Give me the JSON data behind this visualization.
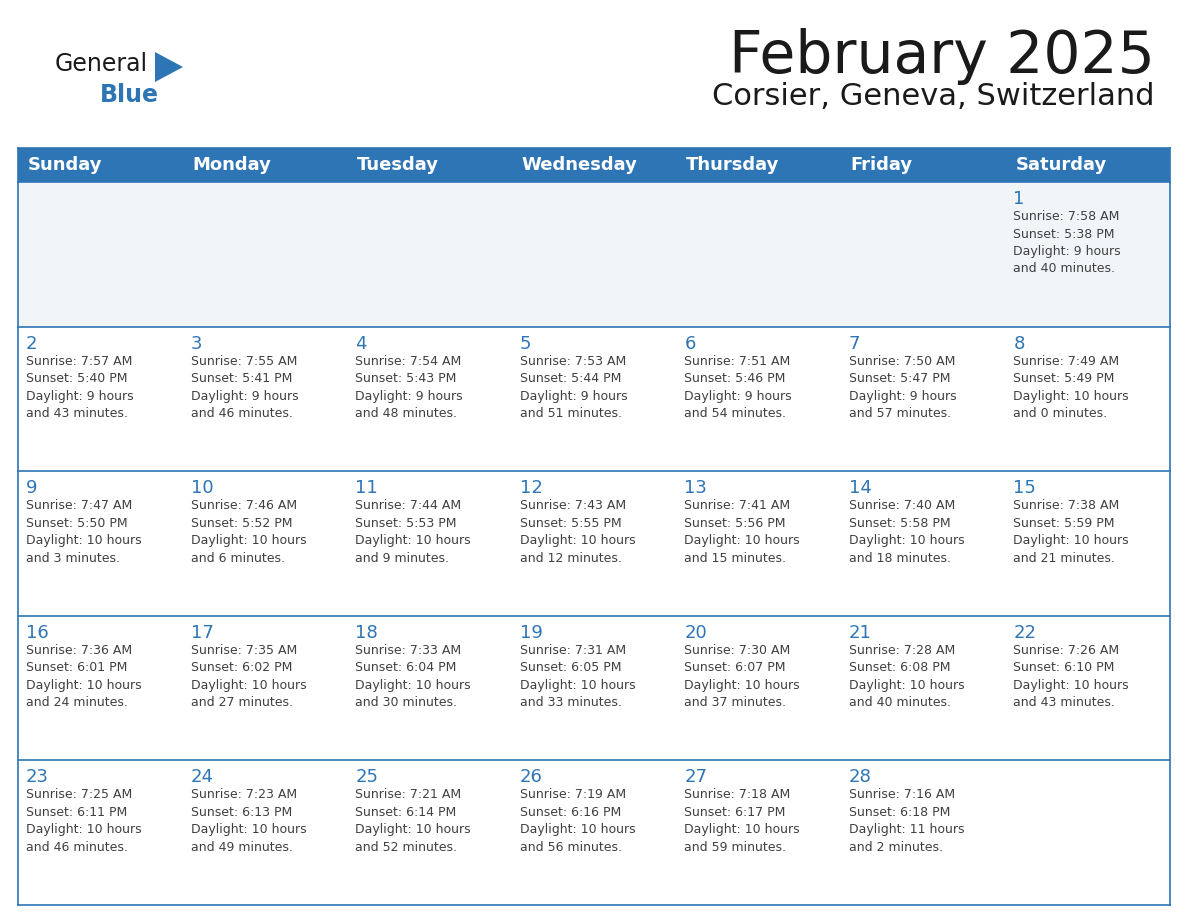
{
  "title": "February 2025",
  "subtitle": "Corsier, Geneva, Switzerland",
  "header_color": "#2e75b6",
  "header_text_color": "#ffffff",
  "row_border_color": "#2e75b6",
  "day_number_color": "#2e75b6",
  "info_text_color": "#404040",
  "background_color": "#ffffff",
  "row1_bg": "#f0f4f8",
  "days_of_week": [
    "Sunday",
    "Monday",
    "Tuesday",
    "Wednesday",
    "Thursday",
    "Friday",
    "Saturday"
  ],
  "weeks": [
    [
      {
        "day": "",
        "info": ""
      },
      {
        "day": "",
        "info": ""
      },
      {
        "day": "",
        "info": ""
      },
      {
        "day": "",
        "info": ""
      },
      {
        "day": "",
        "info": ""
      },
      {
        "day": "",
        "info": ""
      },
      {
        "day": "1",
        "info": "Sunrise: 7:58 AM\nSunset: 5:38 PM\nDaylight: 9 hours\nand 40 minutes."
      }
    ],
    [
      {
        "day": "2",
        "info": "Sunrise: 7:57 AM\nSunset: 5:40 PM\nDaylight: 9 hours\nand 43 minutes."
      },
      {
        "day": "3",
        "info": "Sunrise: 7:55 AM\nSunset: 5:41 PM\nDaylight: 9 hours\nand 46 minutes."
      },
      {
        "day": "4",
        "info": "Sunrise: 7:54 AM\nSunset: 5:43 PM\nDaylight: 9 hours\nand 48 minutes."
      },
      {
        "day": "5",
        "info": "Sunrise: 7:53 AM\nSunset: 5:44 PM\nDaylight: 9 hours\nand 51 minutes."
      },
      {
        "day": "6",
        "info": "Sunrise: 7:51 AM\nSunset: 5:46 PM\nDaylight: 9 hours\nand 54 minutes."
      },
      {
        "day": "7",
        "info": "Sunrise: 7:50 AM\nSunset: 5:47 PM\nDaylight: 9 hours\nand 57 minutes."
      },
      {
        "day": "8",
        "info": "Sunrise: 7:49 AM\nSunset: 5:49 PM\nDaylight: 10 hours\nand 0 minutes."
      }
    ],
    [
      {
        "day": "9",
        "info": "Sunrise: 7:47 AM\nSunset: 5:50 PM\nDaylight: 10 hours\nand 3 minutes."
      },
      {
        "day": "10",
        "info": "Sunrise: 7:46 AM\nSunset: 5:52 PM\nDaylight: 10 hours\nand 6 minutes."
      },
      {
        "day": "11",
        "info": "Sunrise: 7:44 AM\nSunset: 5:53 PM\nDaylight: 10 hours\nand 9 minutes."
      },
      {
        "day": "12",
        "info": "Sunrise: 7:43 AM\nSunset: 5:55 PM\nDaylight: 10 hours\nand 12 minutes."
      },
      {
        "day": "13",
        "info": "Sunrise: 7:41 AM\nSunset: 5:56 PM\nDaylight: 10 hours\nand 15 minutes."
      },
      {
        "day": "14",
        "info": "Sunrise: 7:40 AM\nSunset: 5:58 PM\nDaylight: 10 hours\nand 18 minutes."
      },
      {
        "day": "15",
        "info": "Sunrise: 7:38 AM\nSunset: 5:59 PM\nDaylight: 10 hours\nand 21 minutes."
      }
    ],
    [
      {
        "day": "16",
        "info": "Sunrise: 7:36 AM\nSunset: 6:01 PM\nDaylight: 10 hours\nand 24 minutes."
      },
      {
        "day": "17",
        "info": "Sunrise: 7:35 AM\nSunset: 6:02 PM\nDaylight: 10 hours\nand 27 minutes."
      },
      {
        "day": "18",
        "info": "Sunrise: 7:33 AM\nSunset: 6:04 PM\nDaylight: 10 hours\nand 30 minutes."
      },
      {
        "day": "19",
        "info": "Sunrise: 7:31 AM\nSunset: 6:05 PM\nDaylight: 10 hours\nand 33 minutes."
      },
      {
        "day": "20",
        "info": "Sunrise: 7:30 AM\nSunset: 6:07 PM\nDaylight: 10 hours\nand 37 minutes."
      },
      {
        "day": "21",
        "info": "Sunrise: 7:28 AM\nSunset: 6:08 PM\nDaylight: 10 hours\nand 40 minutes."
      },
      {
        "day": "22",
        "info": "Sunrise: 7:26 AM\nSunset: 6:10 PM\nDaylight: 10 hours\nand 43 minutes."
      }
    ],
    [
      {
        "day": "23",
        "info": "Sunrise: 7:25 AM\nSunset: 6:11 PM\nDaylight: 10 hours\nand 46 minutes."
      },
      {
        "day": "24",
        "info": "Sunrise: 7:23 AM\nSunset: 6:13 PM\nDaylight: 10 hours\nand 49 minutes."
      },
      {
        "day": "25",
        "info": "Sunrise: 7:21 AM\nSunset: 6:14 PM\nDaylight: 10 hours\nand 52 minutes."
      },
      {
        "day": "26",
        "info": "Sunrise: 7:19 AM\nSunset: 6:16 PM\nDaylight: 10 hours\nand 56 minutes."
      },
      {
        "day": "27",
        "info": "Sunrise: 7:18 AM\nSunset: 6:17 PM\nDaylight: 10 hours\nand 59 minutes."
      },
      {
        "day": "28",
        "info": "Sunrise: 7:16 AM\nSunset: 6:18 PM\nDaylight: 11 hours\nand 2 minutes."
      },
      {
        "day": "",
        "info": ""
      }
    ]
  ],
  "logo_text_general": "General",
  "logo_text_blue": "Blue",
  "logo_color_general": "#1a1a1a",
  "logo_color_blue": "#2e75b6",
  "logo_triangle_color": "#2e75b6",
  "title_fontsize": 42,
  "subtitle_fontsize": 22,
  "header_fontsize": 13,
  "day_num_fontsize": 13,
  "info_fontsize": 9
}
